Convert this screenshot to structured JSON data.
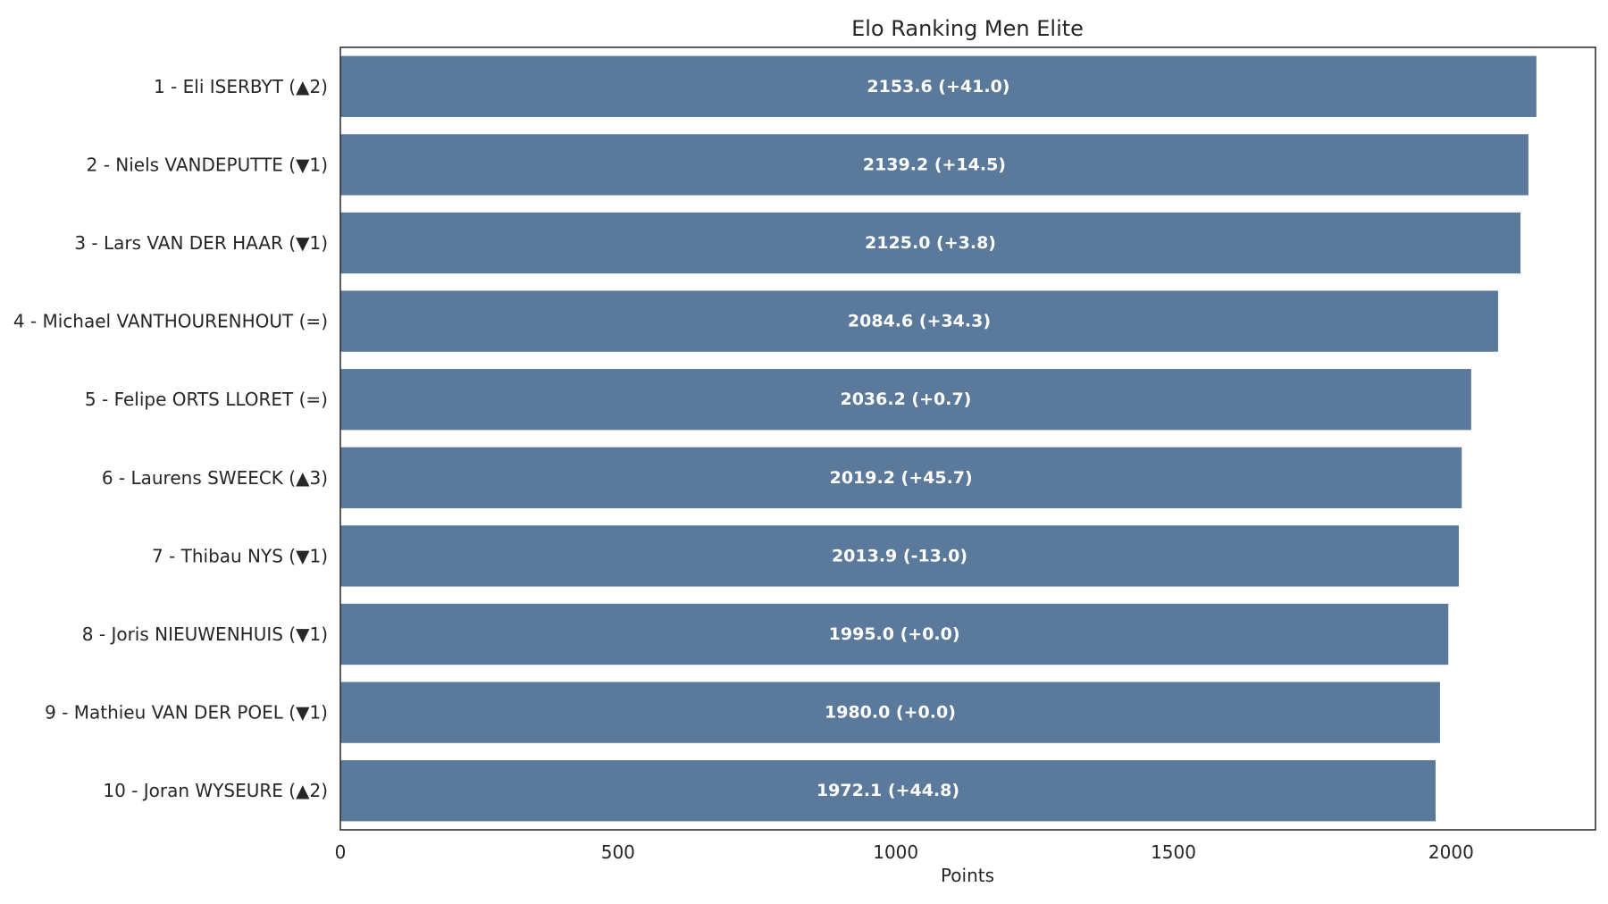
{
  "chart_data": {
    "type": "bar",
    "orientation": "horizontal",
    "title": "Elo Ranking Men Elite",
    "xlabel": "Points",
    "ylabel": "",
    "xlim": [
      0,
      2260
    ],
    "xticks": [
      0,
      500,
      1000,
      1500,
      2000
    ],
    "grid": false,
    "bar_color": "#5a799b",
    "categories": [
      "1 - Eli ISERBYT (▲2)",
      "2 - Niels VANDEPUTTE (▼1)",
      "3 - Lars VAN DER HAAR (▼1)",
      "4 - Michael VANTHOURENHOUT (=)",
      "5 - Felipe ORTS LLORET (=)",
      "6 - Laurens SWEECK (▲3)",
      "7 - Thibau NYS (▼1)",
      "8 - Joris NIEUWENHUIS (▼1)",
      "9 - Mathieu VAN DER POEL (▼1)",
      "10 - Joran WYSEURE (▲2)"
    ],
    "values": [
      2153.6,
      2139.2,
      2125.0,
      2084.6,
      2036.2,
      2019.2,
      2013.9,
      1995.0,
      1980.0,
      1972.1
    ],
    "data_labels": [
      "2153.6 (+41.0)",
      "2139.2 (+14.5)",
      "2125.0 (+3.8)",
      "2084.6 (+34.3)",
      "2036.2 (+0.7)",
      "2019.2 (+45.7)",
      "2013.9 (-13.0)",
      "1995.0 (+0.0)",
      "1980.0 (+0.0)",
      "1972.1 (+44.8)"
    ]
  }
}
